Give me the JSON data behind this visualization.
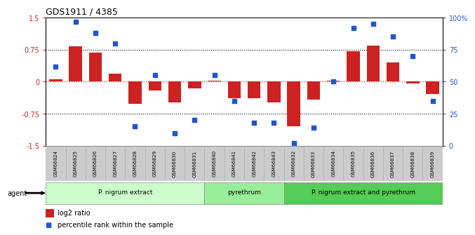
{
  "title": "GDS1911 / 4385",
  "samples": [
    "GSM66824",
    "GSM66825",
    "GSM66826",
    "GSM66827",
    "GSM66828",
    "GSM66829",
    "GSM66830",
    "GSM66831",
    "GSM66840",
    "GSM66841",
    "GSM66842",
    "GSM66843",
    "GSM66832",
    "GSM66833",
    "GSM66834",
    "GSM66835",
    "GSM66836",
    "GSM66837",
    "GSM66838",
    "GSM66839"
  ],
  "log2_ratio": [
    0.05,
    0.82,
    0.68,
    0.18,
    -0.52,
    -0.2,
    -0.48,
    -0.15,
    0.02,
    -0.38,
    -0.38,
    -0.48,
    -1.05,
    -0.42,
    0.02,
    0.72,
    0.85,
    0.45,
    -0.05,
    -0.28
  ],
  "percentile": [
    62,
    97,
    88,
    80,
    15,
    55,
    10,
    20,
    55,
    35,
    18,
    18,
    2,
    14,
    50,
    92,
    95,
    85,
    70,
    35
  ],
  "groups": [
    {
      "label": "P. nigrum extract",
      "start": 0,
      "end": 8,
      "color": "#ccffcc"
    },
    {
      "label": "pyrethrum",
      "start": 8,
      "end": 12,
      "color": "#99ee99"
    },
    {
      "label": "P. nigrum extract and pyrethrum",
      "start": 12,
      "end": 20,
      "color": "#55cc55"
    }
  ],
  "ylim_left": [
    -1.5,
    1.5
  ],
  "ylim_right": [
    0,
    100
  ],
  "yticks_left": [
    -1.5,
    -0.75,
    0.0,
    0.75,
    1.5
  ],
  "ytick_labels_left": [
    "-1.5",
    "-0.75",
    "0",
    "0.75",
    "1.5"
  ],
  "yticks_right": [
    0,
    25,
    50,
    75,
    100
  ],
  "ytick_labels_right": [
    "0",
    "25",
    "50",
    "75",
    "100%"
  ],
  "bar_color": "#cc2222",
  "scatter_color": "#2255cc",
  "zero_line_color": "#cc3333",
  "hline_color": "black",
  "bg_color": "white",
  "agent_label": "agent",
  "legend_bar": "log2 ratio",
  "legend_scatter": "percentile rank within the sample",
  "group_border_color": "#888888",
  "sample_box_color": "#cccccc",
  "sample_box_border": "#aaaaaa"
}
